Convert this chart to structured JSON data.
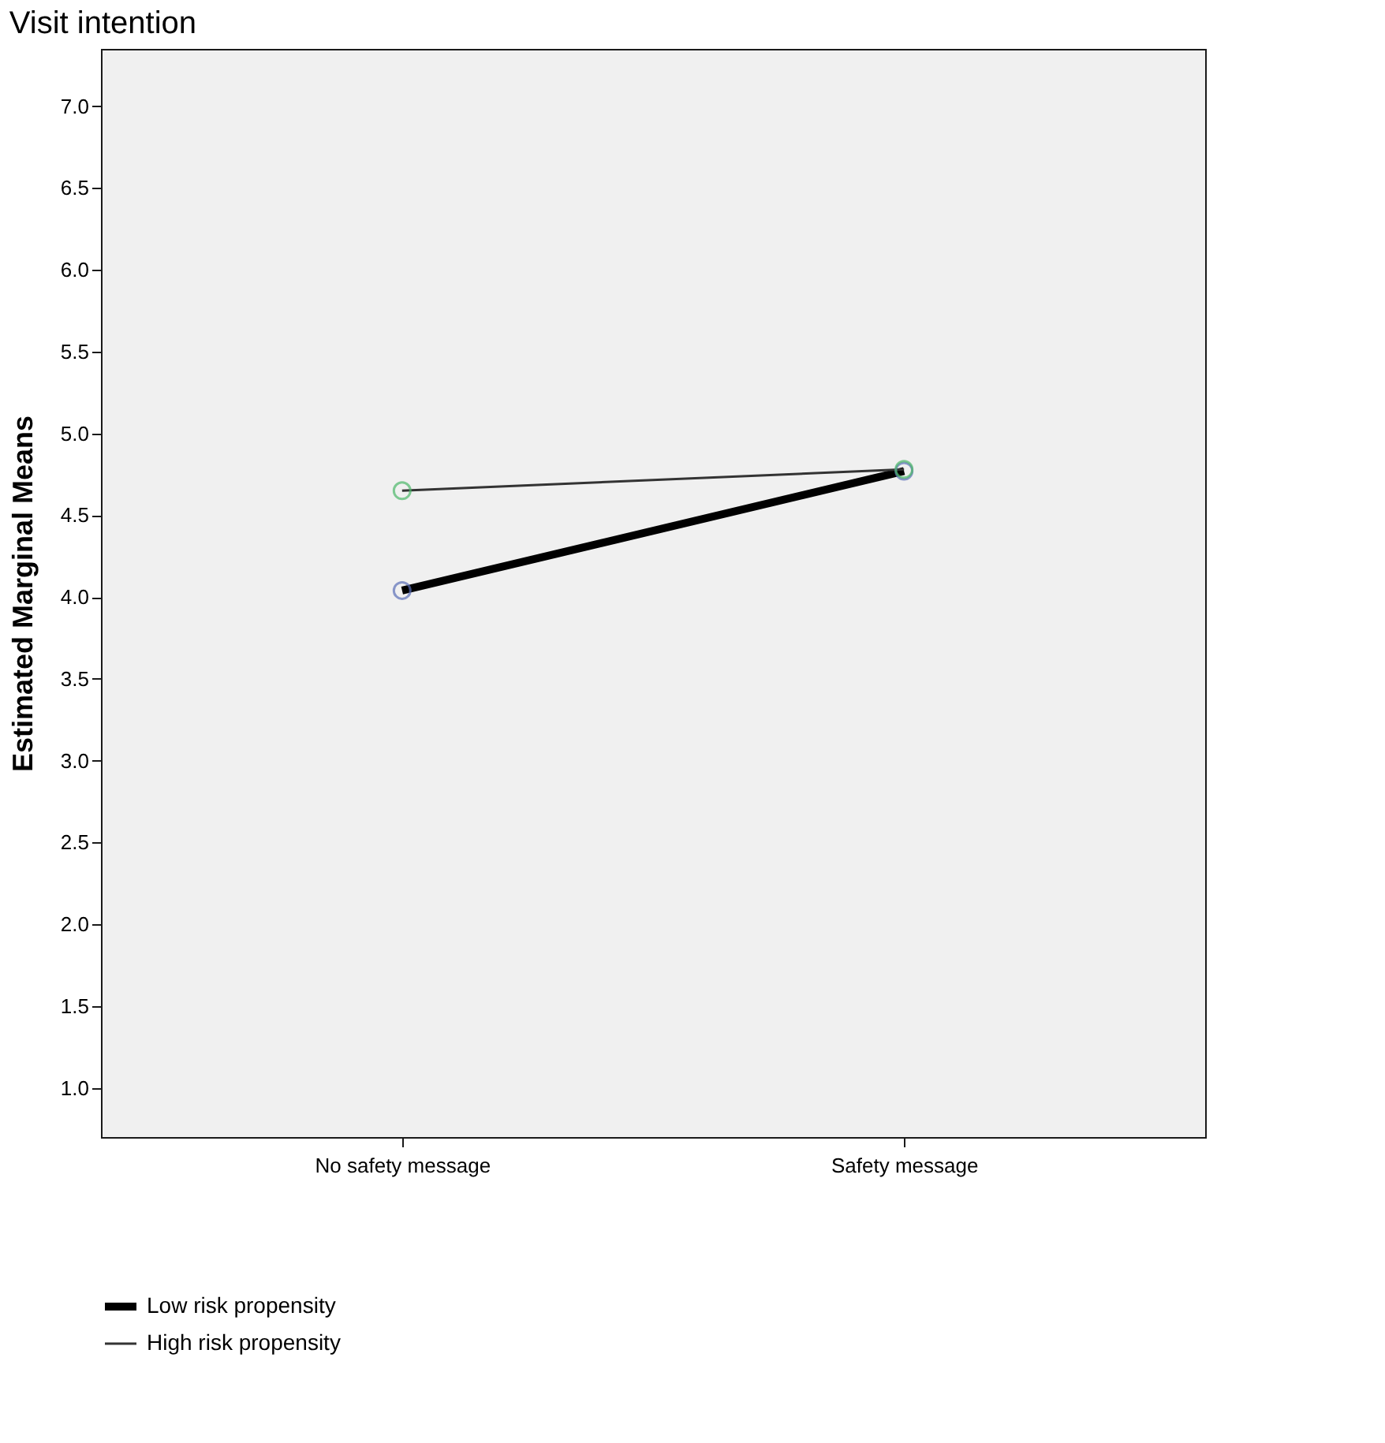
{
  "chart_data": {
    "type": "line",
    "title": "Visit intention",
    "ylabel": "Estimated Marginal Means",
    "categories": [
      "No safety message",
      "Safety message"
    ],
    "series": [
      {
        "name": "Low risk propensity",
        "color": "#000000",
        "colors": [
          "#5b6fb8",
          "#5b6fb8"
        ],
        "values": [
          4.04,
          4.77
        ]
      },
      {
        "name": "High risk propensity",
        "color": "#333333",
        "colors": [
          "#4db86a",
          "#4db86a"
        ],
        "values": [
          4.65,
          4.78
        ]
      }
    ],
    "ylim": [
      0.7,
      7.35
    ],
    "yticks": [
      {
        "value": 1,
        "label": "1.0"
      },
      {
        "value": 1.5,
        "label": "1.5"
      },
      {
        "value": 2,
        "label": "2.0"
      },
      {
        "value": 2.5,
        "label": "2.5"
      },
      {
        "value": 3,
        "label": "3.0"
      },
      {
        "value": 3.5,
        "label": "3.5"
      },
      {
        "value": 4,
        "label": "4.0"
      },
      {
        "value": 4.5,
        "label": "4.5"
      },
      {
        "value": 5,
        "label": "5.0"
      },
      {
        "value": 5.5,
        "label": "5.5"
      },
      {
        "value": 6,
        "label": "6.0"
      },
      {
        "value": 6.5,
        "label": "6.5"
      },
      {
        "value": 7,
        "label": "7.0"
      }
    ],
    "marker": "circle",
    "grid": false,
    "legend": "bottom"
  }
}
